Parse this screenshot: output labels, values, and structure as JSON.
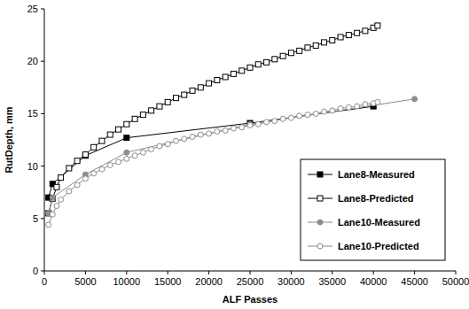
{
  "chart_data": {
    "type": "line",
    "x_label": "ALF Passes",
    "y_label": "RutDepth, mm",
    "xlim": [
      0,
      50000
    ],
    "xticks": [
      0,
      5000,
      10000,
      15000,
      20000,
      25000,
      30000,
      35000,
      40000,
      45000,
      50000
    ],
    "ylim": [
      0,
      25
    ],
    "yticks": [
      0,
      5,
      10,
      15,
      20,
      25
    ],
    "grid": false,
    "legend": "lower right",
    "series": [
      {
        "name": "Lane8-Measured",
        "color": "#000000",
        "marker": "square",
        "line_style": "solid",
        "x": [
          500,
          1000,
          5000,
          10000,
          25000,
          40000
        ],
        "values": [
          7.0,
          8.3,
          11.0,
          12.7,
          14.1,
          15.7
        ]
      },
      {
        "name": "Lane8-Predicted",
        "color": "#000000",
        "marker": "square-open",
        "line_style": "solid",
        "x": [
          500,
          1000,
          1500,
          2000,
          3000,
          4000,
          5000,
          6000,
          7000,
          8000,
          9000,
          10000,
          11000,
          12000,
          13000,
          14000,
          15000,
          16000,
          17000,
          18000,
          19000,
          20000,
          21000,
          22000,
          23000,
          24000,
          25000,
          26000,
          27000,
          28000,
          29000,
          30000,
          31000,
          32000,
          33000,
          34000,
          35000,
          36000,
          37000,
          38000,
          39000,
          40000,
          40500
        ],
        "values": [
          5.5,
          6.9,
          8.0,
          8.9,
          9.8,
          10.5,
          11.1,
          11.8,
          12.4,
          13.0,
          13.5,
          14.0,
          14.5,
          14.9,
          15.3,
          15.7,
          16.1,
          16.5,
          16.8,
          17.2,
          17.5,
          17.9,
          18.2,
          18.5,
          18.8,
          19.1,
          19.4,
          19.7,
          19.9,
          20.2,
          20.5,
          20.8,
          21.0,
          21.3,
          21.5,
          21.8,
          22.0,
          22.3,
          22.5,
          22.7,
          22.9,
          23.2,
          23.4
        ]
      },
      {
        "name": "Lane10-Measured",
        "color": "#8c8c8c",
        "marker": "circle",
        "line_style": "solid",
        "x": [
          500,
          1000,
          5000,
          10000,
          25000,
          45000
        ],
        "values": [
          5.5,
          7.0,
          9.2,
          11.3,
          14.0,
          16.4
        ]
      },
      {
        "name": "Lane10-Predicted",
        "color": "#8c8c8c",
        "marker": "circle-open",
        "line_style": "solid",
        "x": [
          500,
          1000,
          1500,
          2000,
          3000,
          4000,
          5000,
          6000,
          7000,
          8000,
          9000,
          10000,
          11000,
          12000,
          13000,
          14000,
          15000,
          16000,
          17000,
          18000,
          19000,
          20000,
          21000,
          22000,
          23000,
          24000,
          25000,
          26000,
          27000,
          28000,
          29000,
          30000,
          31000,
          32000,
          33000,
          34000,
          35000,
          36000,
          37000,
          38000,
          39000,
          40000,
          40500
        ],
        "values": [
          4.4,
          5.4,
          6.2,
          6.8,
          7.6,
          8.2,
          8.8,
          9.3,
          9.7,
          10.1,
          10.4,
          10.7,
          11.0,
          11.3,
          11.6,
          11.9,
          12.1,
          12.4,
          12.6,
          12.8,
          13.0,
          13.1,
          13.3,
          13.4,
          13.6,
          13.7,
          13.9,
          14.0,
          14.2,
          14.3,
          14.5,
          14.6,
          14.8,
          14.9,
          15.0,
          15.2,
          15.3,
          15.5,
          15.6,
          15.7,
          15.9,
          16.0,
          16.1
        ]
      }
    ]
  }
}
